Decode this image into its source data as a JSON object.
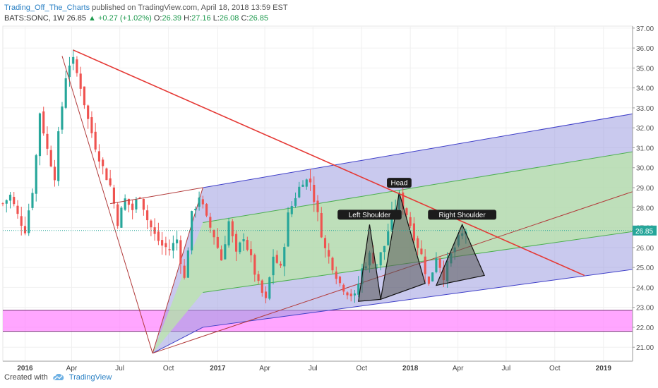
{
  "header": {
    "author": "Trading_Off_The_Charts",
    "published_text": "published on TradingView.com, April 18, 2018 13:59 EST"
  },
  "ohlc": {
    "symbol": "BATS:SONC, 1W",
    "last": "26.85",
    "change": "▲ +0.27 (+1.02%)",
    "o_label": "O:",
    "o": "26.39",
    "h_label": "H:",
    "h": "27.16",
    "l_label": "L:",
    "l": "26.08",
    "c_label": "C:",
    "c": "26.85"
  },
  "footer": {
    "created_with": "Created with",
    "brand": "TradingView"
  },
  "colors": {
    "up": "#26a69a",
    "down": "#ef5350",
    "trendline": "#e53935",
    "channel_blue": "#3f3fc8",
    "channel_green": "#4caf50",
    "median": "#b23b3b",
    "support_zone": "#ff80ff",
    "price_tag": "#26a69a"
  },
  "chart_data": {
    "type": "candlestick",
    "title": "",
    "xlabel": "",
    "ylabel": "",
    "ylim": [
      20.3,
      37.1
    ],
    "xlim": [
      "2015-11-23",
      "2019-02-25"
    ],
    "y_ticks": [
      "21.00",
      "22.00",
      "23.00",
      "24.00",
      "25.00",
      "26.00",
      "27.00",
      "28.00",
      "29.00",
      "30.00",
      "31.00",
      "32.00",
      "33.00",
      "34.00",
      "35.00",
      "36.00",
      "37.00"
    ],
    "x_ticks": [
      {
        "label": "2016",
        "date": "2016-01-04"
      },
      {
        "label": "Apr",
        "date": "2016-04-01"
      },
      {
        "label": "Jul",
        "date": "2016-07-01"
      },
      {
        "label": "Oct",
        "date": "2016-10-01"
      },
      {
        "label": "2017",
        "date": "2017-01-02"
      },
      {
        "label": "Apr",
        "date": "2017-04-01"
      },
      {
        "label": "Jul",
        "date": "2017-07-01"
      },
      {
        "label": "Oct",
        "date": "2017-10-01"
      },
      {
        "label": "2018",
        "date": "2018-01-01"
      },
      {
        "label": "Apr",
        "date": "2018-04-01"
      },
      {
        "label": "Jul",
        "date": "2018-07-01"
      },
      {
        "label": "Oct",
        "date": "2018-10-01"
      },
      {
        "label": "2019",
        "date": "2019-01-01"
      }
    ],
    "last_price": "26.85",
    "price_path": [
      [
        "2015-11-23",
        28.2
      ],
      [
        "2015-12-07",
        28.6
      ],
      [
        "2015-12-21",
        27.6
      ],
      [
        "2016-01-04",
        26.9
      ],
      [
        "2016-01-18",
        28.9
      ],
      [
        "2016-01-25",
        30.6
      ],
      [
        "2016-02-01",
        32.8
      ],
      [
        "2016-02-15",
        30.9
      ],
      [
        "2016-02-29",
        29.6
      ],
      [
        "2016-03-07",
        31.6
      ],
      [
        "2016-03-21",
        34.6
      ],
      [
        "2016-04-01",
        35.6
      ],
      [
        "2016-04-18",
        34.1
      ],
      [
        "2016-05-02",
        32.4
      ],
      [
        "2016-05-16",
        31.1
      ],
      [
        "2016-05-30",
        30.0
      ],
      [
        "2016-06-13",
        29.1
      ],
      [
        "2016-06-27",
        27.3
      ],
      [
        "2016-07-11",
        28.4
      ],
      [
        "2016-07-25",
        27.9
      ],
      [
        "2016-08-08",
        28.7
      ],
      [
        "2016-08-22",
        27.4
      ],
      [
        "2016-09-05",
        26.6
      ],
      [
        "2016-09-19",
        26.1
      ],
      [
        "2016-10-03",
        25.9
      ],
      [
        "2016-10-17",
        26.4
      ],
      [
        "2016-10-31",
        24.4
      ],
      [
        "2016-11-14",
        27.6
      ],
      [
        "2016-11-28",
        28.6
      ],
      [
        "2016-12-12",
        27.4
      ],
      [
        "2016-12-26",
        26.6
      ],
      [
        "2017-01-09",
        25.4
      ],
      [
        "2017-01-23",
        27.3
      ],
      [
        "2017-02-06",
        25.6
      ],
      [
        "2017-02-20",
        26.6
      ],
      [
        "2017-03-06",
        25.4
      ],
      [
        "2017-03-20",
        24.1
      ],
      [
        "2017-04-03",
        23.3
      ],
      [
        "2017-04-17",
        25.6
      ],
      [
        "2017-05-01",
        24.9
      ],
      [
        "2017-05-15",
        27.6
      ],
      [
        "2017-05-29",
        28.6
      ],
      [
        "2017-06-12",
        29.4
      ],
      [
        "2017-06-26",
        29.3
      ],
      [
        "2017-07-10",
        27.6
      ],
      [
        "2017-07-24",
        25.9
      ],
      [
        "2017-08-07",
        25.1
      ],
      [
        "2017-08-21",
        24.2
      ],
      [
        "2017-09-04",
        23.8
      ],
      [
        "2017-09-18",
        23.5
      ],
      [
        "2017-10-02",
        24.9
      ],
      [
        "2017-10-16",
        25.6
      ],
      [
        "2017-10-30",
        25.2
      ],
      [
        "2017-11-13",
        26.1
      ],
      [
        "2017-11-27",
        27.6
      ],
      [
        "2017-12-11",
        28.5
      ],
      [
        "2017-12-25",
        27.7
      ],
      [
        "2018-01-08",
        26.6
      ],
      [
        "2018-01-22",
        25.6
      ],
      [
        "2018-02-05",
        24.1
      ],
      [
        "2018-02-19",
        25.6
      ],
      [
        "2018-03-05",
        24.6
      ],
      [
        "2018-03-19",
        25.6
      ],
      [
        "2018-04-02",
        26.4
      ],
      [
        "2018-04-16",
        26.85
      ]
    ],
    "annotations": [
      {
        "label": "Head",
        "date": "2017-12-11",
        "price": 28.75
      },
      {
        "label": "Left Shoulder",
        "date": "2017-10-16",
        "price": 27.15
      },
      {
        "label": "Right Shoulder",
        "date": "2018-04-09",
        "price": 27.15
      }
    ],
    "drawings": {
      "trendline": {
        "from": [
          "2016-04-04",
          35.9
        ],
        "to": [
          "2018-11-26",
          24.6
        ]
      },
      "wedge_lines": [
        {
          "from": [
            "2016-03-14",
            35.6
          ],
          "to": [
            "2016-09-01",
            20.7
          ]
        },
        {
          "from": [
            "2016-06-13",
            28.2
          ],
          "to": [
            "2016-12-05",
            29.0
          ]
        }
      ],
      "pitchfork": {
        "origin": [
          "2016-09-01",
          20.7
        ],
        "upper_anchor": [
          "2016-12-05",
          29.0
        ],
        "lower_anchor": [
          "2016-12-05",
          22.0
        ],
        "end_date": "2019-02-25",
        "outer_end_upper": 32.7,
        "outer_end_lower": 24.9,
        "inner_end_upper": 30.8,
        "inner_end_lower": 26.8,
        "median_end": 28.8
      },
      "support_zone": {
        "top": 22.85,
        "bottom": 21.8
      },
      "hs_triangles": [
        {
          "points": [
            [
              "2017-09-25",
              23.3
            ],
            [
              "2017-10-16",
              27.15
            ],
            [
              "2017-11-06",
              23.4
            ]
          ]
        },
        {
          "points": [
            [
              "2017-11-06",
              23.4
            ],
            [
              "2017-12-11",
              28.75
            ],
            [
              "2018-01-29",
              24.2
            ]
          ]
        },
        {
          "points": [
            [
              "2018-02-19",
              24.1
            ],
            [
              "2018-04-09",
              27.15
            ],
            [
              "2018-05-21",
              24.6
            ]
          ]
        }
      ]
    }
  }
}
